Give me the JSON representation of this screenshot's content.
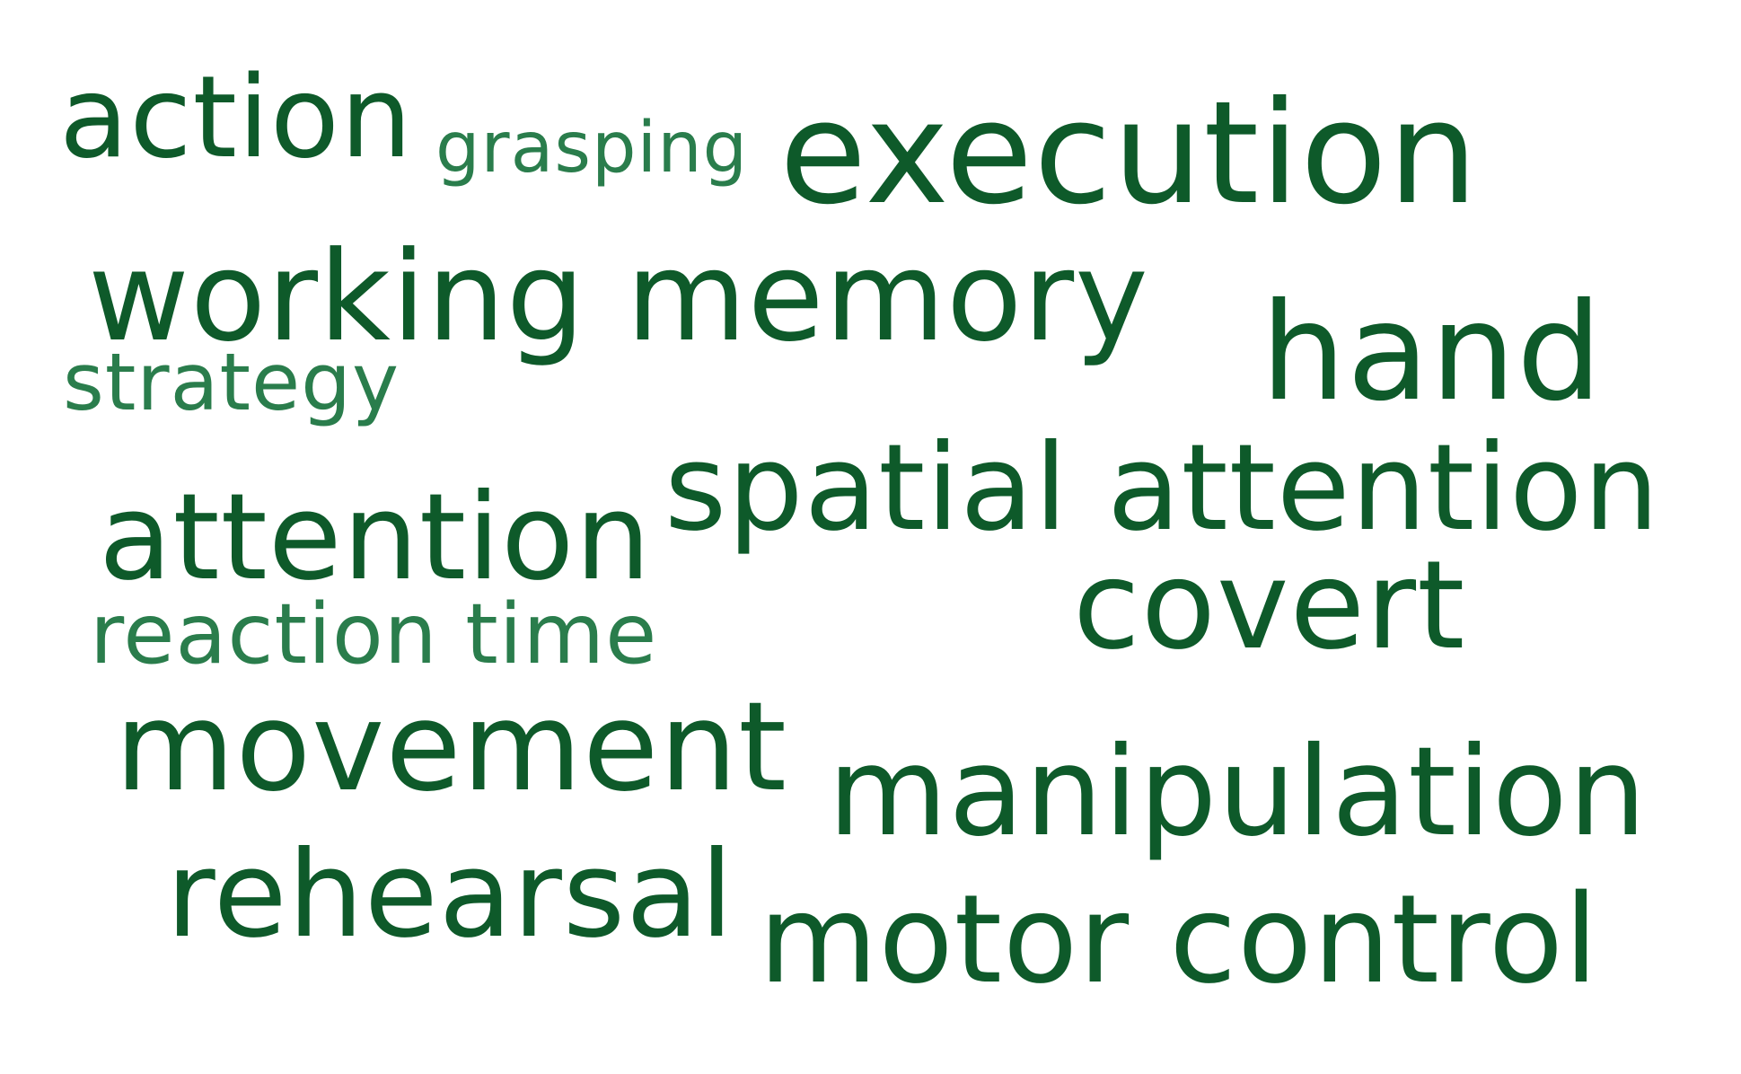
{
  "colors": {
    "primary_green": "#0e5a2a",
    "secondary_green": "#2a7d4c",
    "background": "#ffffff"
  },
  "words": [
    {
      "id": "action",
      "text": "action",
      "color": "#0e5a2a"
    },
    {
      "id": "grasping",
      "text": "grasping",
      "color": "#2a7d4c"
    },
    {
      "id": "execution",
      "text": "execution",
      "color": "#0e5a2a"
    },
    {
      "id": "working",
      "text": "working memory",
      "color": "#0e5a2a"
    },
    {
      "id": "strategy",
      "text": "strategy",
      "color": "#2a7d4c"
    },
    {
      "id": "hand",
      "text": "hand",
      "color": "#0e5a2a"
    },
    {
      "id": "attention",
      "text": "attention",
      "color": "#0e5a2a"
    },
    {
      "id": "spatial",
      "text": "spatial attention",
      "color": "#0e5a2a"
    },
    {
      "id": "reaction",
      "text": "reaction time",
      "color": "#2a7d4c"
    },
    {
      "id": "covert",
      "text": "covert",
      "color": "#0e5a2a"
    },
    {
      "id": "movement",
      "text": "movement",
      "color": "#0e5a2a"
    },
    {
      "id": "manipulation",
      "text": "manipulation",
      "color": "#0e5a2a"
    },
    {
      "id": "rehearsal",
      "text": "rehearsal",
      "color": "#0e5a2a"
    },
    {
      "id": "motor",
      "text": "motor control",
      "color": "#0e5a2a"
    }
  ]
}
